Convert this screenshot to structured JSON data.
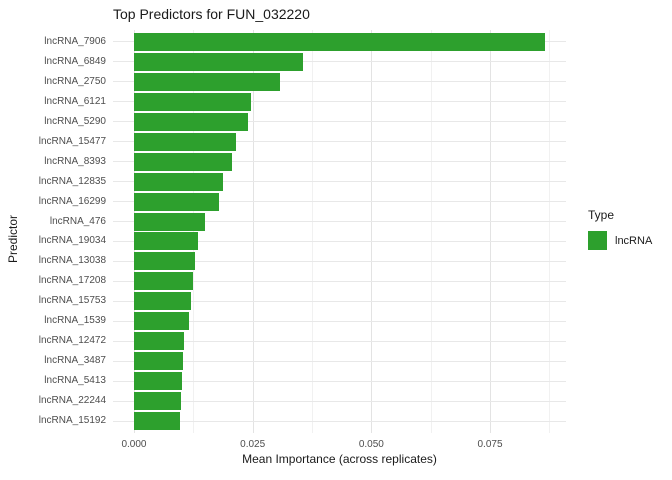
{
  "title": "Top Predictors for FUN_032220",
  "colors": {
    "bar_green": "#2DA02D",
    "grid_major": "#e3e3e3",
    "grid_minor": "#f1f1f1",
    "axis_text": "#4d4d4d",
    "text_dark": "#1a1a1a",
    "background": "#ffffff"
  },
  "legend": {
    "title": "Type",
    "items": [
      {
        "label": "lncRNA",
        "color": "#2DA02D"
      }
    ]
  },
  "chart_data": {
    "type": "bar",
    "orientation": "horizontal",
    "title": "Top Predictors for FUN_032220",
    "xlabel": "Mean Importance (across replicates)",
    "ylabel": "Predictor",
    "categories": [
      "lncRNA_7906",
      "lncRNA_6849",
      "lncRNA_2750",
      "lncRNA_6121",
      "lncRNA_5290",
      "lncRNA_15477",
      "lncRNA_8393",
      "lncRNA_12835",
      "lncRNA_16299",
      "lncRNA_476",
      "lncRNA_19034",
      "lncRNA_13038",
      "lncRNA_17208",
      "lncRNA_15753",
      "lncRNA_1539",
      "lncRNA_12472",
      "lncRNA_3487",
      "lncRNA_5413",
      "lncRNA_22244",
      "lncRNA_15192"
    ],
    "series": [
      {
        "name": "lncRNA",
        "values": [
          0.0866,
          0.0356,
          0.0308,
          0.0247,
          0.024,
          0.0215,
          0.0207,
          0.0188,
          0.0179,
          0.015,
          0.0134,
          0.0129,
          0.0124,
          0.012,
          0.0116,
          0.0105,
          0.0103,
          0.0102,
          0.0098,
          0.0097
        ]
      }
    ],
    "x_ticks": {
      "values": [
        0,
        0.025,
        0.05,
        0.075
      ],
      "labels": [
        "0.000",
        "0.025",
        "0.050",
        "0.075"
      ]
    },
    "x_minor_ticks": [
      0.0125,
      0.0375,
      0.0625,
      0.0875
    ],
    "xlim": [
      -0.004424,
      0.09101
    ],
    "grid": true,
    "legend_position": "right"
  }
}
